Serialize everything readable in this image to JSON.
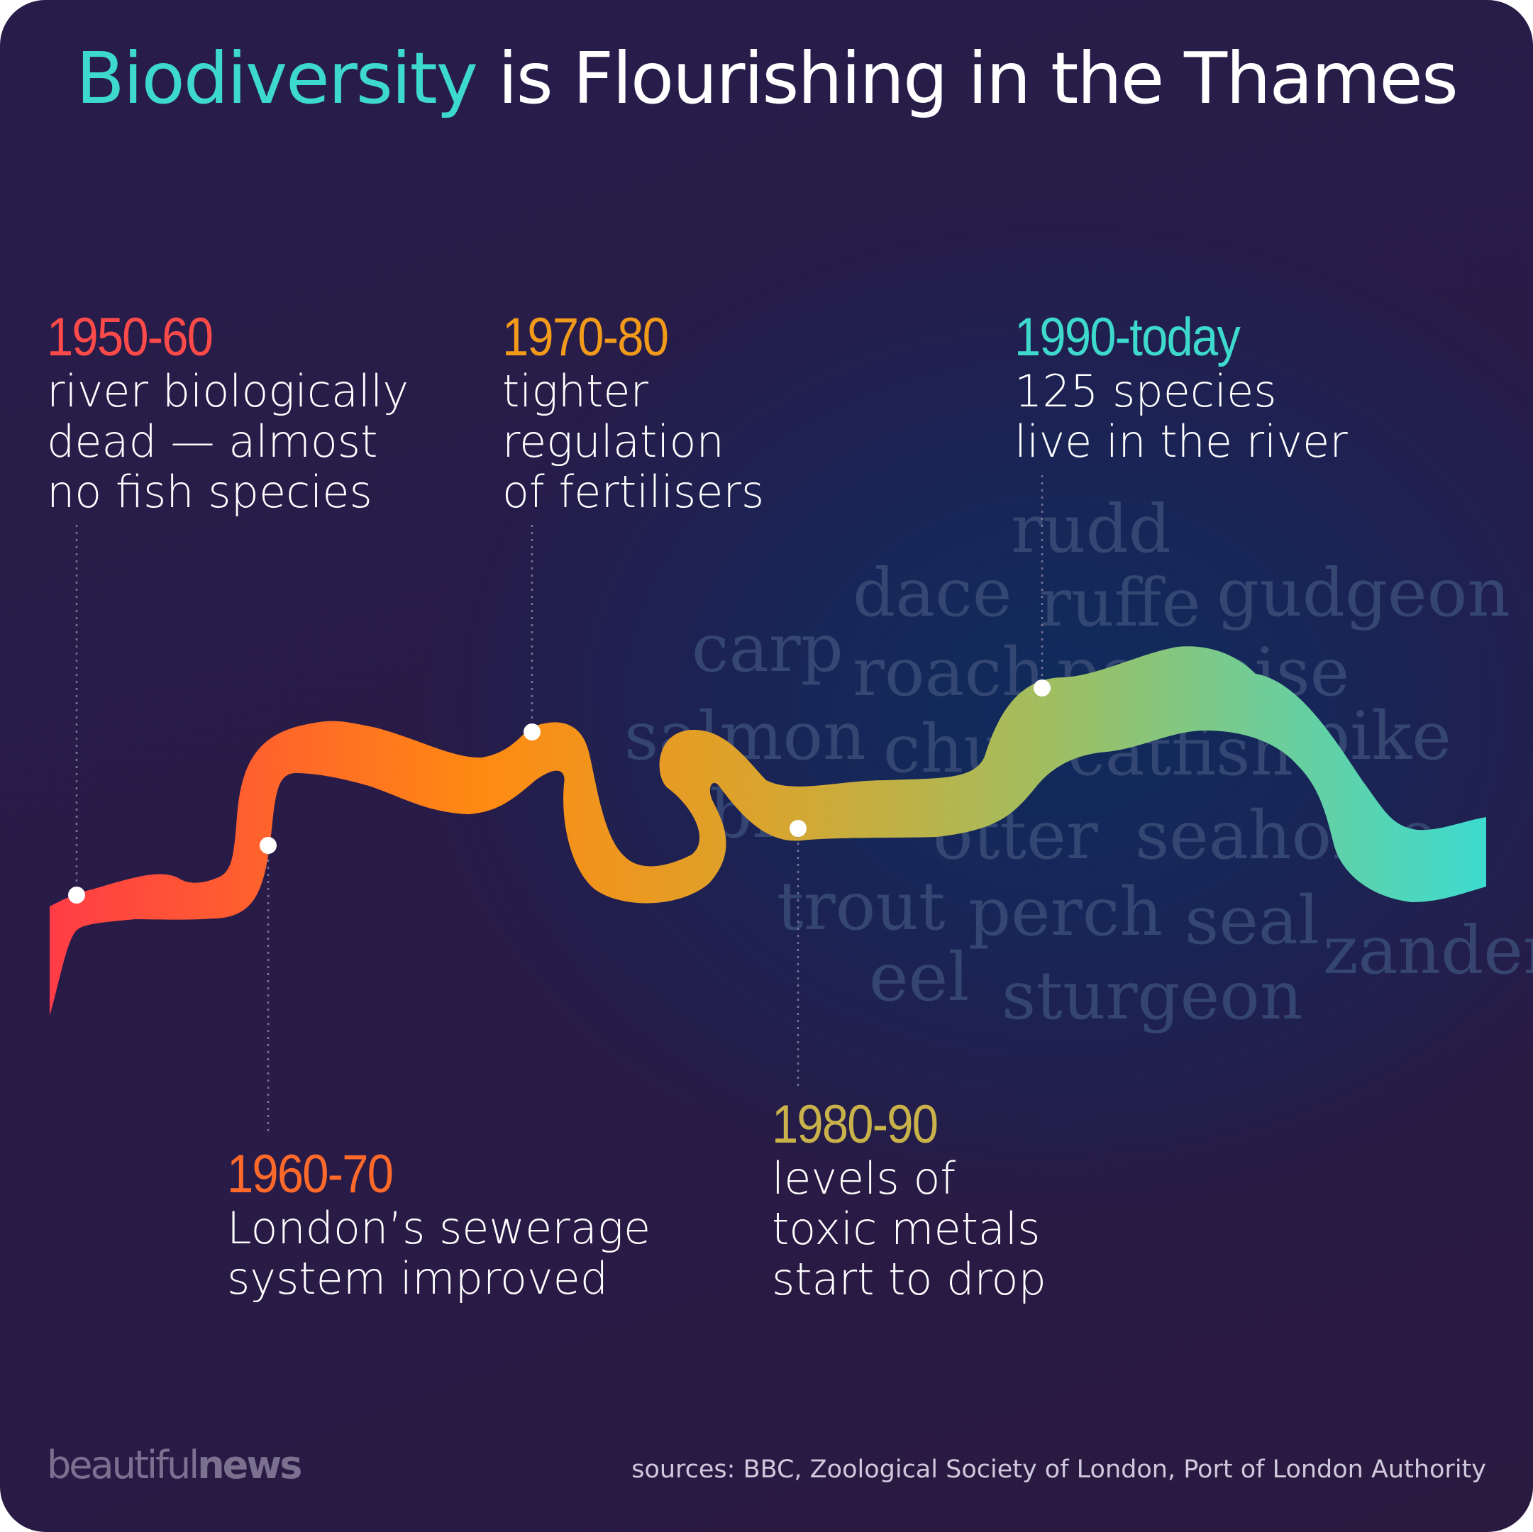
{
  "title": {
    "highlight": "Biodiversity",
    "rest": "is Flourishing in the Thames"
  },
  "colors": {
    "accent": "#3dd9cc",
    "era1": "#ff4a4a",
    "era2": "#ff6a2a",
    "era3": "#f29a1a",
    "era4": "#c9b24a",
    "era5": "#3dd9cc"
  },
  "eras": [
    {
      "years": "1950-60",
      "lines": [
        "river biologically",
        "dead — almost",
        "no fish species"
      ]
    },
    {
      "years": "1960-70",
      "lines": [
        "London’s sewerage",
        "system improved"
      ]
    },
    {
      "years": "1970-80",
      "lines": [
        "tighter",
        "regulation",
        "of fertilisers"
      ]
    },
    {
      "years": "1980-90",
      "lines": [
        "levels of",
        "toxic metals",
        "start to drop"
      ]
    },
    {
      "years": "1990-today",
      "lines": [
        "125 species",
        "live in the river"
      ]
    }
  ],
  "species": [
    "rudd",
    "dace",
    "ruffe",
    "gudgeon",
    "carp",
    "roach",
    "porpoise",
    "salmon",
    "chub",
    "catfish",
    "pike",
    "bream",
    "otter",
    "seahorse",
    "trout",
    "perch",
    "seal",
    "zander",
    "eel",
    "sturgeon"
  ],
  "brand": {
    "light": "beautiful",
    "bold": "news"
  },
  "sources": "sources: BBC, Zoological Society of London, Port of London Authority"
}
